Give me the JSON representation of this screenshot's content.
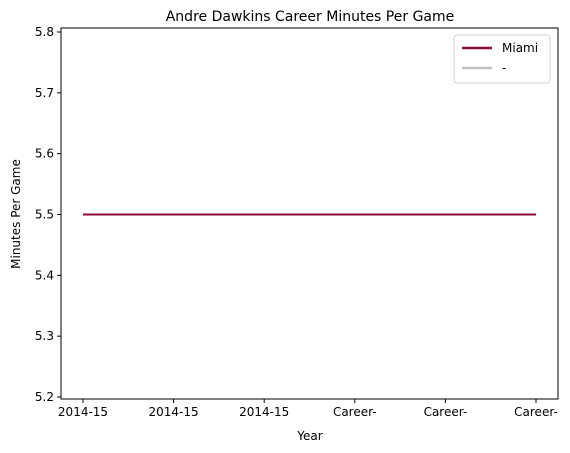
{
  "chart_data": {
    "type": "line",
    "title": "Andre Dawkins Career Minutes Per Game",
    "xlabel": "Year",
    "ylabel": "Minutes Per Game",
    "categories": [
      "2014-15",
      "2014-15",
      "2014-15",
      "Career-",
      "Career-",
      "Career-"
    ],
    "ylim": [
      5.2,
      5.8
    ],
    "yticks": [
      5.2,
      5.3,
      5.4,
      5.5,
      5.6,
      5.7,
      5.8
    ],
    "grid": false,
    "legend_position": "top-right",
    "series": [
      {
        "name": "Miami",
        "color": "#8b0a3a",
        "values": [
          5.5,
          5.5,
          5.5,
          5.5,
          5.5,
          5.5
        ]
      },
      {
        "name": "-",
        "color": "#c0c0c0",
        "values": [
          5.5,
          5.5,
          5.5,
          5.5,
          5.5,
          5.5
        ]
      }
    ]
  }
}
